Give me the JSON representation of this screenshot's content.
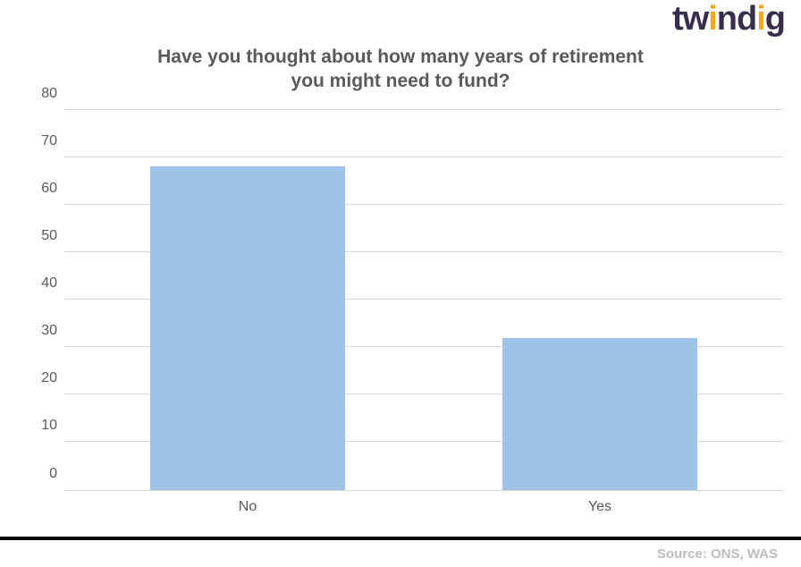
{
  "logo": {
    "text": "twindig",
    "primary_color": "#3a2e4f",
    "accent_color": "#f5a623"
  },
  "chart": {
    "type": "bar",
    "title_line1": "Have you thought about how many years of retirement",
    "title_line2": "you might need to fund?",
    "title_fontsize": 21,
    "title_color": "#595959",
    "categories": [
      "No",
      "Yes"
    ],
    "values": [
      68,
      32
    ],
    "bar_color": "#9dc3e6",
    "bar_width_pct": 27,
    "bar_positions_pct": [
      12,
      61
    ],
    "ylim": [
      0,
      80
    ],
    "ytick_step": 10,
    "yticks": [
      0,
      10,
      20,
      30,
      40,
      50,
      60,
      70,
      80
    ],
    "grid_color": "#d9d9d9",
    "axis_label_color": "#595959",
    "axis_label_fontsize": 16,
    "background_color": "#ffffff"
  },
  "footer": {
    "source_text": "Source: ONS, WAS",
    "source_color": "#bfbfbf",
    "line_color": "#000000"
  }
}
